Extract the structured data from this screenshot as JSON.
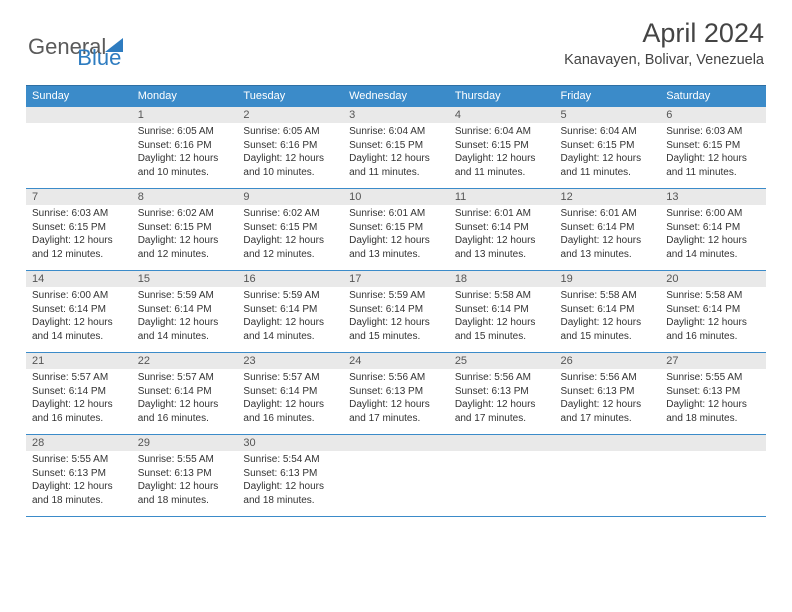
{
  "logo": {
    "text1": "General",
    "text2": "Blue"
  },
  "title": "April 2024",
  "location": "Kanavayen, Bolivar, Venezuela",
  "colors": {
    "header_bg": "#3b8bc9",
    "header_text": "#ffffff",
    "border": "#3b8bc9",
    "daynum_bg": "#e9e9e9",
    "logo_blue": "#2e7cc0",
    "logo_gray": "#5a5a5a"
  },
  "weekdays": [
    "Sunday",
    "Monday",
    "Tuesday",
    "Wednesday",
    "Thursday",
    "Friday",
    "Saturday"
  ],
  "weeks": [
    [
      {
        "day": "",
        "lines": []
      },
      {
        "day": "1",
        "lines": [
          "Sunrise: 6:05 AM",
          "Sunset: 6:16 PM",
          "Daylight: 12 hours and 10 minutes."
        ]
      },
      {
        "day": "2",
        "lines": [
          "Sunrise: 6:05 AM",
          "Sunset: 6:16 PM",
          "Daylight: 12 hours and 10 minutes."
        ]
      },
      {
        "day": "3",
        "lines": [
          "Sunrise: 6:04 AM",
          "Sunset: 6:15 PM",
          "Daylight: 12 hours and 11 minutes."
        ]
      },
      {
        "day": "4",
        "lines": [
          "Sunrise: 6:04 AM",
          "Sunset: 6:15 PM",
          "Daylight: 12 hours and 11 minutes."
        ]
      },
      {
        "day": "5",
        "lines": [
          "Sunrise: 6:04 AM",
          "Sunset: 6:15 PM",
          "Daylight: 12 hours and 11 minutes."
        ]
      },
      {
        "day": "6",
        "lines": [
          "Sunrise: 6:03 AM",
          "Sunset: 6:15 PM",
          "Daylight: 12 hours and 11 minutes."
        ]
      }
    ],
    [
      {
        "day": "7",
        "lines": [
          "Sunrise: 6:03 AM",
          "Sunset: 6:15 PM",
          "Daylight: 12 hours and 12 minutes."
        ]
      },
      {
        "day": "8",
        "lines": [
          "Sunrise: 6:02 AM",
          "Sunset: 6:15 PM",
          "Daylight: 12 hours and 12 minutes."
        ]
      },
      {
        "day": "9",
        "lines": [
          "Sunrise: 6:02 AM",
          "Sunset: 6:15 PM",
          "Daylight: 12 hours and 12 minutes."
        ]
      },
      {
        "day": "10",
        "lines": [
          "Sunrise: 6:01 AM",
          "Sunset: 6:15 PM",
          "Daylight: 12 hours and 13 minutes."
        ]
      },
      {
        "day": "11",
        "lines": [
          "Sunrise: 6:01 AM",
          "Sunset: 6:14 PM",
          "Daylight: 12 hours and 13 minutes."
        ]
      },
      {
        "day": "12",
        "lines": [
          "Sunrise: 6:01 AM",
          "Sunset: 6:14 PM",
          "Daylight: 12 hours and 13 minutes."
        ]
      },
      {
        "day": "13",
        "lines": [
          "Sunrise: 6:00 AM",
          "Sunset: 6:14 PM",
          "Daylight: 12 hours and 14 minutes."
        ]
      }
    ],
    [
      {
        "day": "14",
        "lines": [
          "Sunrise: 6:00 AM",
          "Sunset: 6:14 PM",
          "Daylight: 12 hours and 14 minutes."
        ]
      },
      {
        "day": "15",
        "lines": [
          "Sunrise: 5:59 AM",
          "Sunset: 6:14 PM",
          "Daylight: 12 hours and 14 minutes."
        ]
      },
      {
        "day": "16",
        "lines": [
          "Sunrise: 5:59 AM",
          "Sunset: 6:14 PM",
          "Daylight: 12 hours and 14 minutes."
        ]
      },
      {
        "day": "17",
        "lines": [
          "Sunrise: 5:59 AM",
          "Sunset: 6:14 PM",
          "Daylight: 12 hours and 15 minutes."
        ]
      },
      {
        "day": "18",
        "lines": [
          "Sunrise: 5:58 AM",
          "Sunset: 6:14 PM",
          "Daylight: 12 hours and 15 minutes."
        ]
      },
      {
        "day": "19",
        "lines": [
          "Sunrise: 5:58 AM",
          "Sunset: 6:14 PM",
          "Daylight: 12 hours and 15 minutes."
        ]
      },
      {
        "day": "20",
        "lines": [
          "Sunrise: 5:58 AM",
          "Sunset: 6:14 PM",
          "Daylight: 12 hours and 16 minutes."
        ]
      }
    ],
    [
      {
        "day": "21",
        "lines": [
          "Sunrise: 5:57 AM",
          "Sunset: 6:14 PM",
          "Daylight: 12 hours and 16 minutes."
        ]
      },
      {
        "day": "22",
        "lines": [
          "Sunrise: 5:57 AM",
          "Sunset: 6:14 PM",
          "Daylight: 12 hours and 16 minutes."
        ]
      },
      {
        "day": "23",
        "lines": [
          "Sunrise: 5:57 AM",
          "Sunset: 6:14 PM",
          "Daylight: 12 hours and 16 minutes."
        ]
      },
      {
        "day": "24",
        "lines": [
          "Sunrise: 5:56 AM",
          "Sunset: 6:13 PM",
          "Daylight: 12 hours and 17 minutes."
        ]
      },
      {
        "day": "25",
        "lines": [
          "Sunrise: 5:56 AM",
          "Sunset: 6:13 PM",
          "Daylight: 12 hours and 17 minutes."
        ]
      },
      {
        "day": "26",
        "lines": [
          "Sunrise: 5:56 AM",
          "Sunset: 6:13 PM",
          "Daylight: 12 hours and 17 minutes."
        ]
      },
      {
        "day": "27",
        "lines": [
          "Sunrise: 5:55 AM",
          "Sunset: 6:13 PM",
          "Daylight: 12 hours and 18 minutes."
        ]
      }
    ],
    [
      {
        "day": "28",
        "lines": [
          "Sunrise: 5:55 AM",
          "Sunset: 6:13 PM",
          "Daylight: 12 hours and 18 minutes."
        ]
      },
      {
        "day": "29",
        "lines": [
          "Sunrise: 5:55 AM",
          "Sunset: 6:13 PM",
          "Daylight: 12 hours and 18 minutes."
        ]
      },
      {
        "day": "30",
        "lines": [
          "Sunrise: 5:54 AM",
          "Sunset: 6:13 PM",
          "Daylight: 12 hours and 18 minutes."
        ]
      },
      {
        "day": "",
        "lines": []
      },
      {
        "day": "",
        "lines": []
      },
      {
        "day": "",
        "lines": []
      },
      {
        "day": "",
        "lines": []
      }
    ]
  ]
}
